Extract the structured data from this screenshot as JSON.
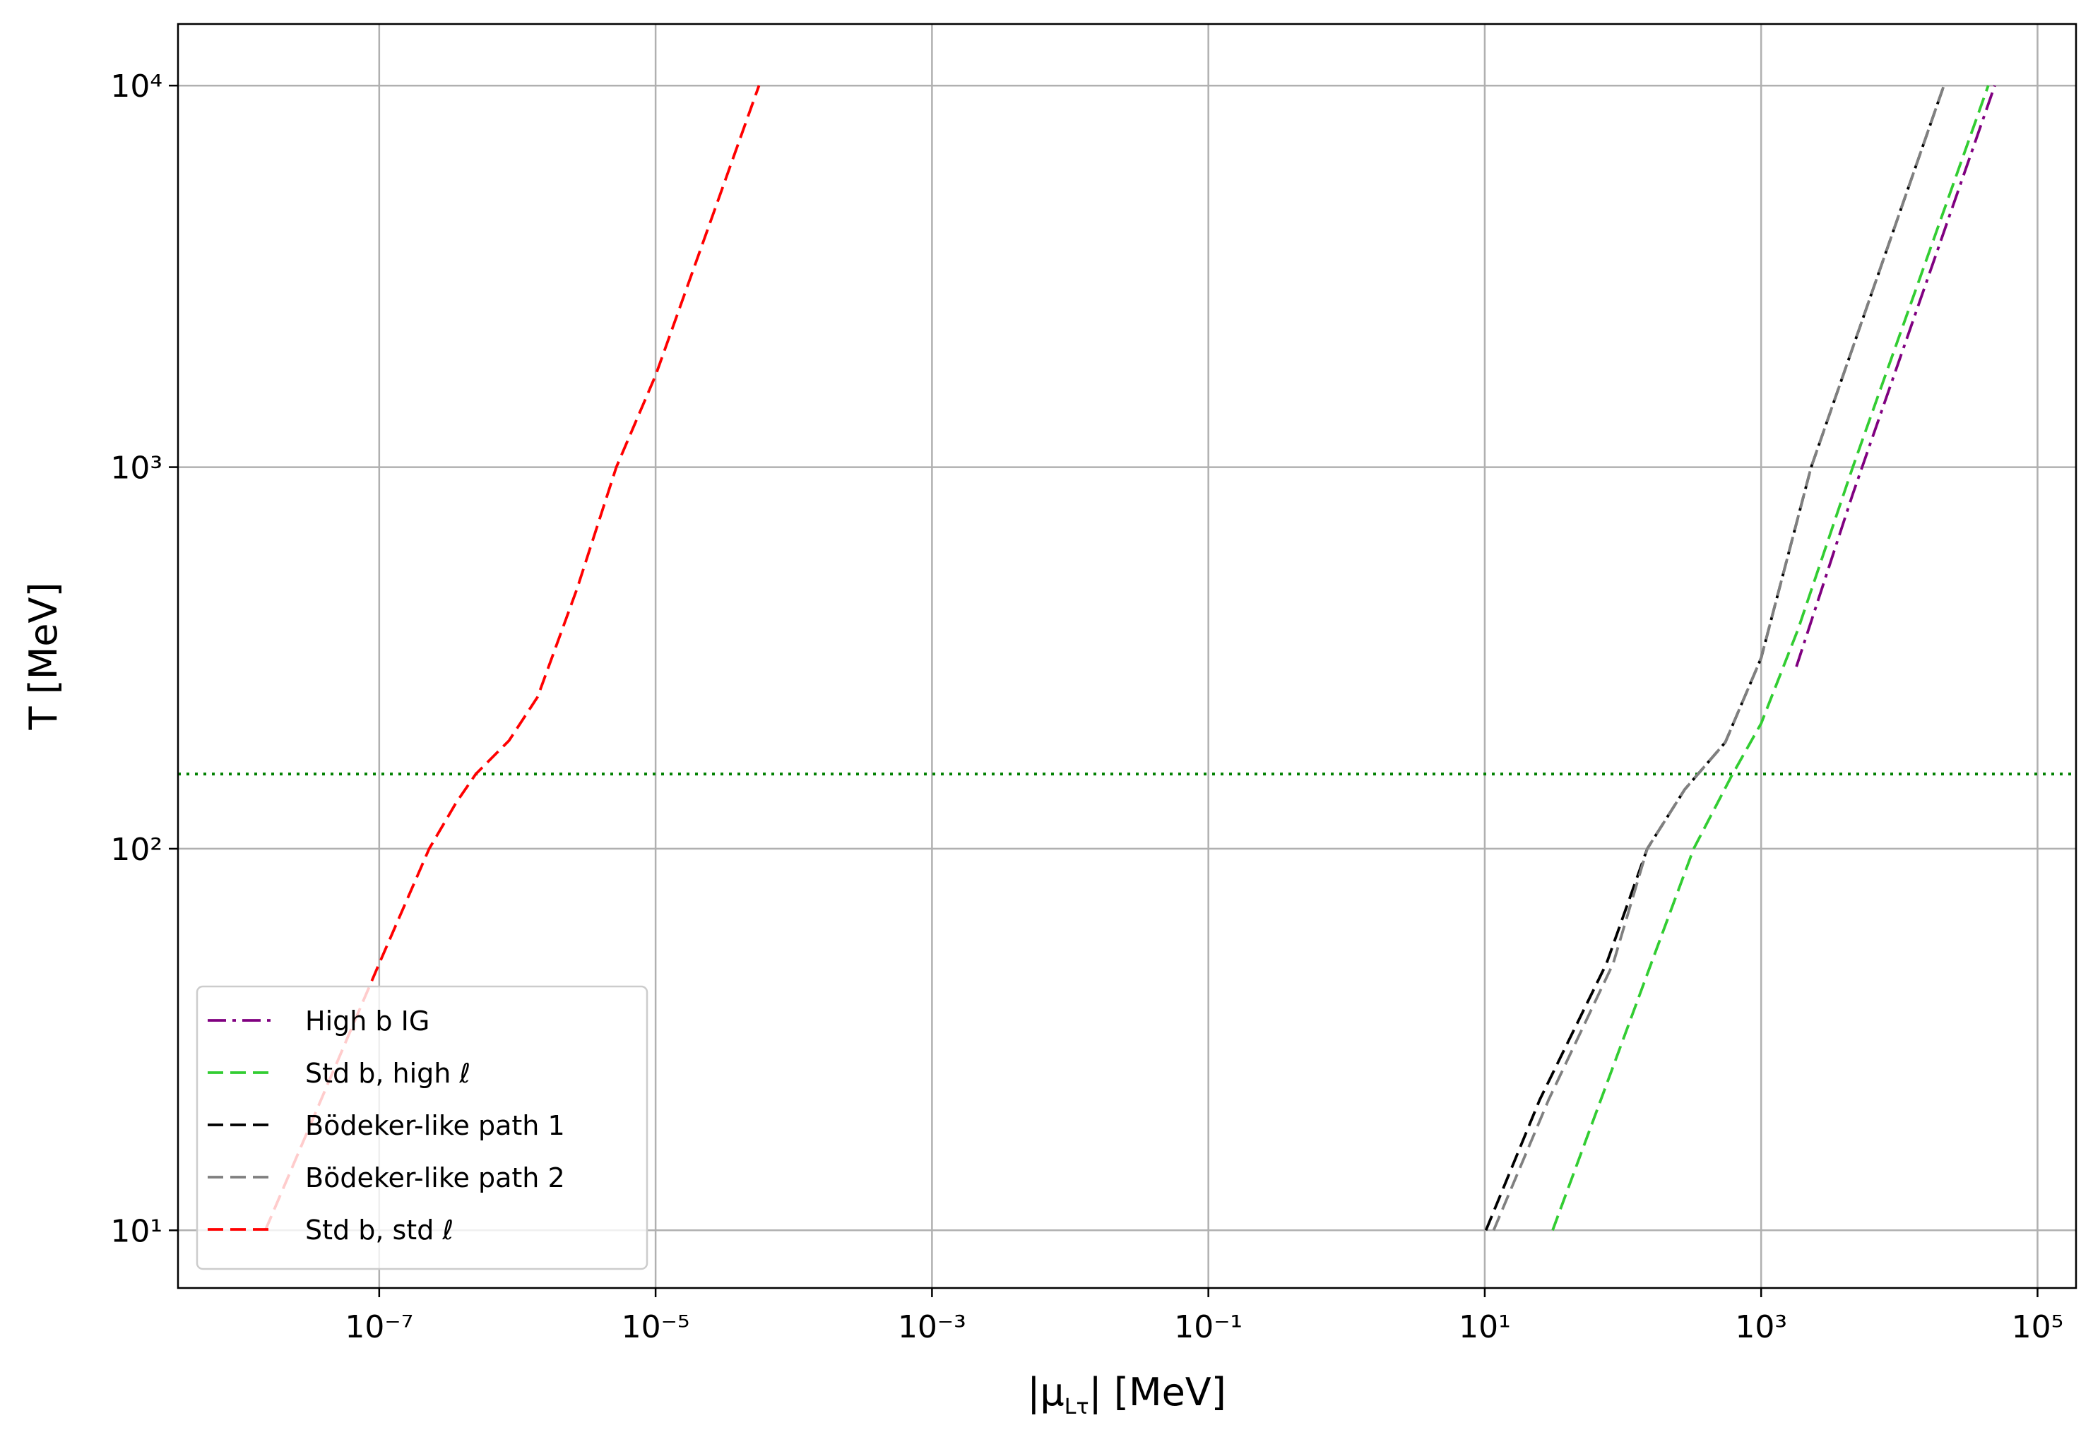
{
  "chart_data": {
    "type": "line",
    "xlabel": {
      "before": "|μ",
      "subscript": "Lτ",
      "after": "| [MeV]"
    },
    "ylabel": "T [MeV]",
    "xscale": "log",
    "yscale": "log",
    "xlim": [
      3.5e-09,
      190000
    ],
    "ylim": [
      7.06,
      14500
    ],
    "xticks": [
      {
        "value": 1e-07,
        "label": "10⁻⁷"
      },
      {
        "value": 1e-05,
        "label": "10⁻⁵"
      },
      {
        "value": 0.001,
        "label": "10⁻³"
      },
      {
        "value": 0.1,
        "label": "10⁻¹"
      },
      {
        "value": 10,
        "label": "10¹"
      },
      {
        "value": 1000,
        "label": "10³"
      },
      {
        "value": 100000,
        "label": "10⁵"
      }
    ],
    "yticks": [
      {
        "value": 10,
        "label": "10¹"
      },
      {
        "value": 100,
        "label": "10²"
      },
      {
        "value": 1000,
        "label": "10³"
      },
      {
        "value": 10000,
        "label": "10⁴"
      }
    ],
    "grid": true,
    "legend": "lower left",
    "hline": {
      "y": 157,
      "color": "#008000",
      "style": "dotted"
    },
    "series": [
      {
        "name": "High b IG",
        "color": "#800080",
        "style": "dashdot",
        "x": [
          1800,
          4600,
          49000
        ],
        "values": [
          300,
          850,
          10000
        ]
      },
      {
        "name": "Std b, high ℓ",
        "color": "#32cd32",
        "style": "dashed",
        "x": [
          31,
          160,
          325,
          610,
          1000,
          1850,
          4600,
          44000
        ],
        "values": [
          10,
          50,
          100,
          155,
          213,
          376,
          1000,
          10000
        ]
      },
      {
        "name": "Bödeker-like path 1",
        "color": "#000000",
        "style": "dashed",
        "x": [
          10.2,
          25,
          76,
          150,
          280,
          550,
          1000,
          2300,
          21000
        ],
        "values": [
          10,
          22,
          50,
          100,
          143,
          190,
          316,
          1000,
          10000
        ]
      },
      {
        "name": "Bödeker-like path 2",
        "color": "#808080",
        "style": "dashed",
        "x": [
          11.6,
          29,
          85,
          150,
          280,
          550,
          1000,
          2300,
          21000
        ],
        "values": [
          10,
          22,
          50,
          100,
          143,
          190,
          316,
          1000,
          10000
        ]
      },
      {
        "name": "Std b, std ℓ",
        "color": "#ff0000",
        "style": "dashed",
        "x": [
          1.5e-08,
          1e-07,
          2.3e-07,
          3.6e-07,
          5e-07,
          8.7e-07,
          1.4e-06,
          2.7e-06,
          5.2e-06,
          1e-05,
          5.6e-05
        ],
        "values": [
          10,
          50,
          100,
          132,
          157,
          192,
          250,
          480,
          1000,
          1740,
          10000
        ]
      }
    ]
  }
}
